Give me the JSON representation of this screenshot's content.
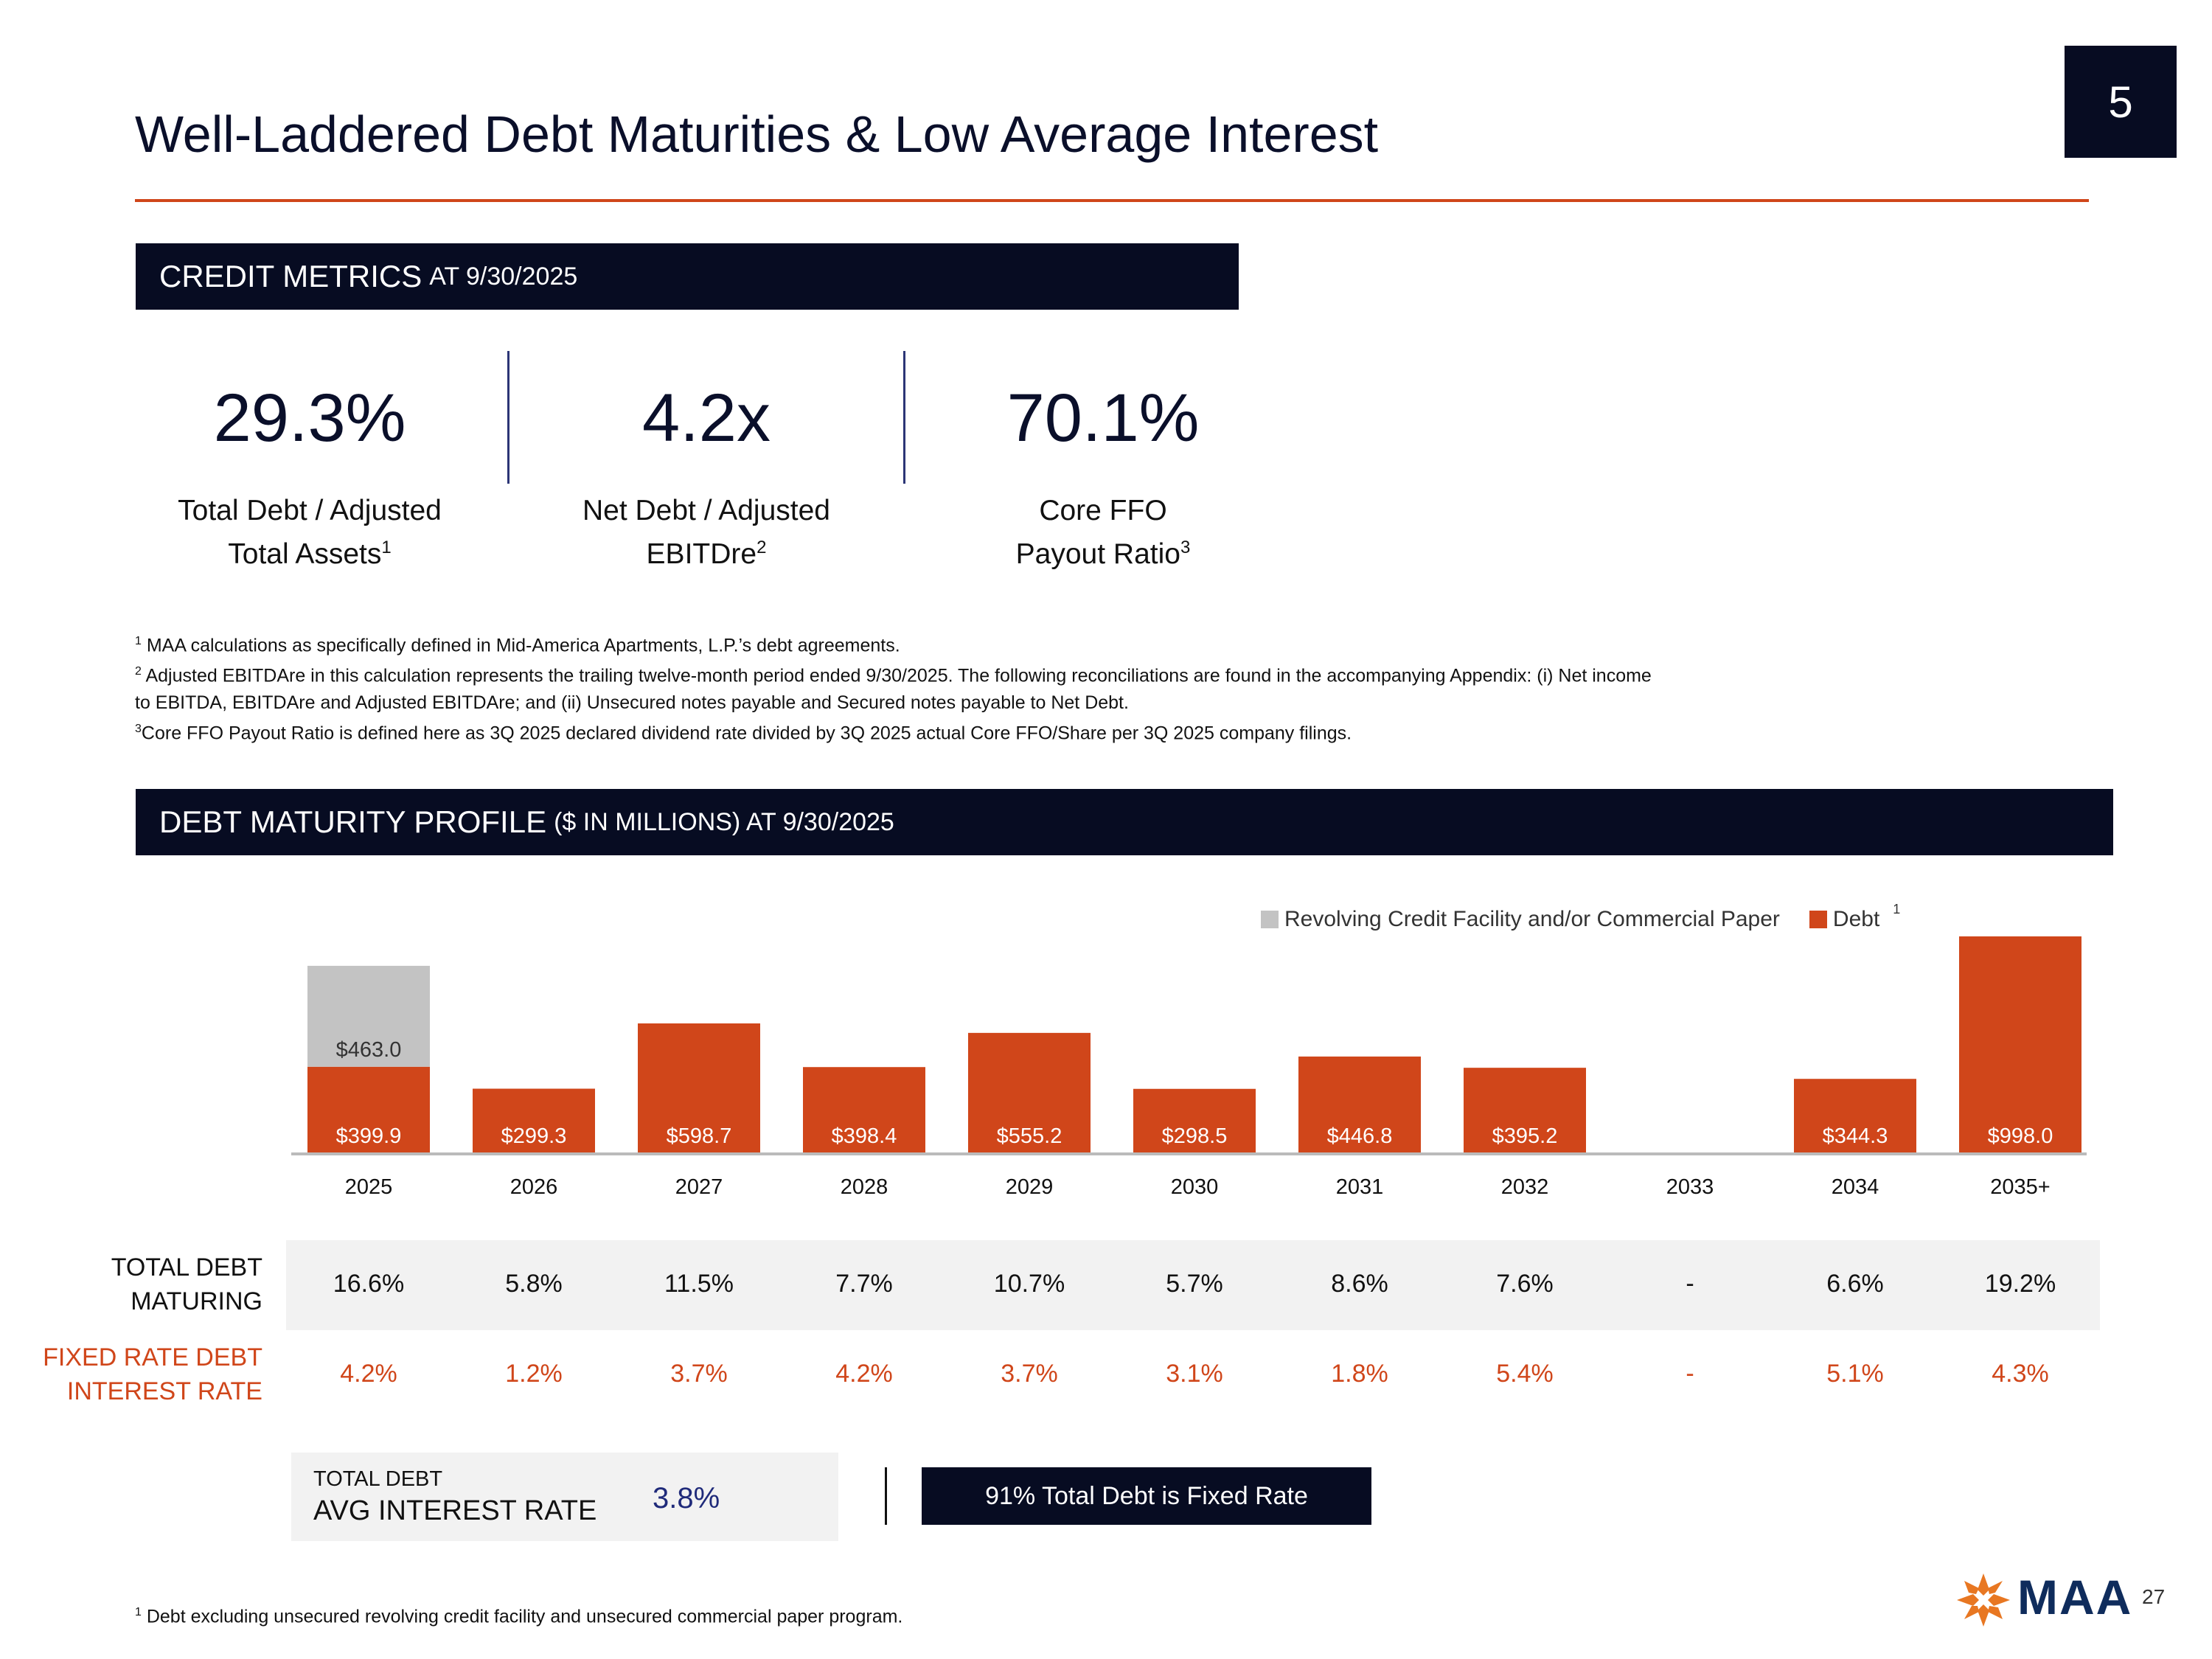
{
  "slide_number": "5",
  "page_number": "27",
  "title": "Well-Laddered Debt Maturities & Low Average Interest",
  "credit_metrics": {
    "banner_main": "CREDIT METRICS",
    "banner_sub": "AT 9/30/2025",
    "metrics": [
      {
        "value": "29.3%",
        "label_line1": "Total Debt / Adjusted",
        "label_line2": "Total Assets",
        "sup": "1"
      },
      {
        "value": "4.2x",
        "label_line1": "Net Debt / Adjusted",
        "label_line2": "EBITDre",
        "sup": "2"
      },
      {
        "value": "70.1%",
        "label_line1": "Core FFO",
        "label_line2": "Payout Ratio",
        "sup": "3"
      }
    ]
  },
  "footnotes": [
    {
      "mark": "1",
      "text": " MAA calculations as specifically defined in Mid-America Apartments, L.P.’s debt agreements."
    },
    {
      "mark": "2",
      "text": " Adjusted EBITDAre in this calculation represents the trailing twelve-month period ended 9/30/2025. The following reconciliations are found in the accompanying Appendix: (i) Net income to EBITDA, EBITDAre and Adjusted EBITDAre; and (ii) Unsecured notes payable and Secured notes payable to Net Debt."
    },
    {
      "mark": "3",
      "text": "Core FFO Payout Ratio is defined here as 3Q 2025 declared dividend rate divided by 3Q 2025 actual Core FFO/Share per 3Q 2025 company filings."
    }
  ],
  "debt_profile": {
    "banner_main": "DEBT MATURITY PROFILE",
    "banner_sub": "($ IN MILLIONS) AT 9/30/2025"
  },
  "chart_data": {
    "type": "bar",
    "stacked": true,
    "categories": [
      "2025",
      "2026",
      "2027",
      "2028",
      "2029",
      "2030",
      "2031",
      "2032",
      "2033",
      "2034",
      "2035+"
    ],
    "series": [
      {
        "name": "Debt",
        "color": "#d0461a",
        "values": [
          399.9,
          299.3,
          598.7,
          398.4,
          555.2,
          298.5,
          446.8,
          395.2,
          0,
          344.3,
          998.0
        ],
        "labels": [
          "$399.9",
          "$299.3",
          "$598.7",
          "$398.4",
          "$555.2",
          "$298.5",
          "$446.8",
          "$395.2",
          "",
          "$344.3",
          "$998.0"
        ]
      },
      {
        "name": "Revolving Credit Facility and/or Commercial Paper",
        "color": "#c3c3c3",
        "values": [
          463.0,
          0,
          0,
          0,
          0,
          0,
          0,
          0,
          0,
          0,
          0
        ],
        "labels": [
          "$463.0",
          "",
          "",
          "",
          "",
          "",
          "",
          "",
          "",
          "",
          ""
        ]
      }
    ],
    "legend": {
      "position": "top-right",
      "debt_superscript": "1"
    },
    "ylim": [
      0,
      1150
    ],
    "grid": false
  },
  "table": {
    "total_debt_label_line1": "TOTAL DEBT",
    "total_debt_label_line2": "MATURING",
    "total_debt": [
      "16.6%",
      "5.8%",
      "11.5%",
      "7.7%",
      "10.7%",
      "5.7%",
      "8.6%",
      "7.6%",
      "-",
      "6.6%",
      "19.2%"
    ],
    "fixed_rate_label_line1": "FIXED RATE DEBT",
    "fixed_rate_label_line2": "INTEREST RATE",
    "fixed_rate": [
      "4.2%",
      "1.2%",
      "3.7%",
      "4.2%",
      "3.7%",
      "3.1%",
      "1.8%",
      "5.4%",
      "-",
      "5.1%",
      "4.3%"
    ]
  },
  "avg_interest": {
    "line1": "TOTAL DEBT",
    "line2": "AVG INTEREST RATE",
    "value": "3.8%"
  },
  "fixed_rate_note": "91% Total Debt is Fixed Rate",
  "bottom_note": {
    "mark": "1",
    "text": " Debt excluding unsecured revolving credit facility and unsecured commercial paper program."
  },
  "logo": {
    "text": "MAA",
    "accent": "#e87722"
  },
  "colors": {
    "navy": "#070c22",
    "orange": "#d0461a",
    "gray": "#c3c3c3",
    "blue_value": "#1f2a7a"
  }
}
